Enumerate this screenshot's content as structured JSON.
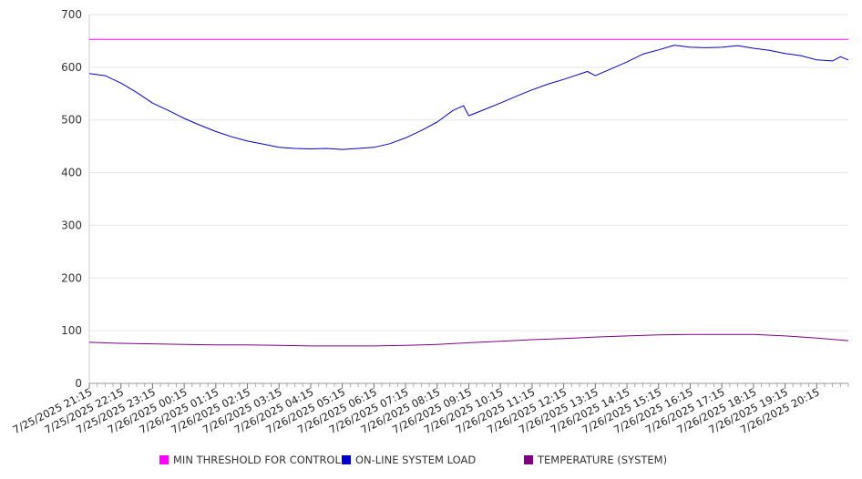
{
  "chart_data": {
    "type": "line",
    "ylim": [
      0,
      700
    ],
    "y_ticks": [
      "0",
      "100",
      "200",
      "300",
      "400",
      "500",
      "600",
      "700"
    ],
    "x_tick_labels": [
      "7/25/2025 21:15",
      "7/25/2025 22:15",
      "7/25/2025 23:15",
      "7/26/2025 00:15",
      "7/26/2025 01:15",
      "7/26/2025 02:15",
      "7/26/2025 03:15",
      "7/26/2025 04:15",
      "7/26/2025 05:15",
      "7/26/2025 06:15",
      "7/26/2025 07:15",
      "7/26/2025 08:15",
      "7/26/2025 09:15",
      "7/26/2025 10:15",
      "7/26/2025 11:15",
      "7/26/2025 12:15",
      "7/26/2025 13:15",
      "7/26/2025 14:15",
      "7/26/2025 15:15",
      "7/26/2025 16:15",
      "7/26/2025 17:15",
      "7/26/2025 18:15",
      "7/26/2025 19:15",
      "7/26/2025 20:15"
    ],
    "x_end": "7/26/2025 21:15",
    "grid": true,
    "legend_position": "bottom",
    "series": [
      {
        "name": "MIN THRESHOLD FOR CONTROL",
        "color": "#ff00ff",
        "points": [
          [
            "7/25/2025 21:15",
            653
          ],
          [
            "7/26/2025 21:15",
            653
          ]
        ]
      },
      {
        "name": "ON-LINE SYSTEM LOAD",
        "color": "#0000cc",
        "points": [
          [
            "7/25/2025 21:15",
            588
          ],
          [
            "7/25/2025 21:45",
            584
          ],
          [
            "7/25/2025 22:15",
            570
          ],
          [
            "7/25/2025 22:45",
            552
          ],
          [
            "7/25/2025 23:15",
            532
          ],
          [
            "7/25/2025 23:45",
            518
          ],
          [
            "7/26/2025 00:15",
            503
          ],
          [
            "7/26/2025 00:45",
            490
          ],
          [
            "7/26/2025 01:15",
            478
          ],
          [
            "7/26/2025 01:45",
            468
          ],
          [
            "7/26/2025 02:15",
            460
          ],
          [
            "7/26/2025 02:45",
            454
          ],
          [
            "7/26/2025 03:15",
            448
          ],
          [
            "7/26/2025 03:45",
            446
          ],
          [
            "7/26/2025 04:15",
            445
          ],
          [
            "7/26/2025 04:45",
            446
          ],
          [
            "7/26/2025 05:15",
            444
          ],
          [
            "7/26/2025 05:45",
            446
          ],
          [
            "7/26/2025 06:15",
            448
          ],
          [
            "7/26/2025 06:45",
            455
          ],
          [
            "7/26/2025 07:15",
            466
          ],
          [
            "7/26/2025 07:45",
            480
          ],
          [
            "7/26/2025 08:15",
            496
          ],
          [
            "7/26/2025 08:45",
            518
          ],
          [
            "7/26/2025 09:05",
            527
          ],
          [
            "7/26/2025 09:15",
            508
          ],
          [
            "7/26/2025 09:45",
            520
          ],
          [
            "7/26/2025 10:15",
            532
          ],
          [
            "7/26/2025 10:45",
            545
          ],
          [
            "7/26/2025 11:15",
            557
          ],
          [
            "7/26/2025 11:45",
            568
          ],
          [
            "7/26/2025 12:15",
            577
          ],
          [
            "7/26/2025 12:45",
            587
          ],
          [
            "7/26/2025 13:00",
            592
          ],
          [
            "7/26/2025 13:15",
            584
          ],
          [
            "7/26/2025 13:45",
            597
          ],
          [
            "7/26/2025 14:15",
            610
          ],
          [
            "7/26/2025 14:45",
            625
          ],
          [
            "7/26/2025 15:15",
            633
          ],
          [
            "7/26/2025 15:45",
            642
          ],
          [
            "7/26/2025 16:15",
            638
          ],
          [
            "7/26/2025 16:45",
            637
          ],
          [
            "7/26/2025 17:15",
            638
          ],
          [
            "7/26/2025 17:45",
            641
          ],
          [
            "7/26/2025 18:15",
            636
          ],
          [
            "7/26/2025 18:45",
            632
          ],
          [
            "7/26/2025 19:15",
            626
          ],
          [
            "7/26/2025 19:45",
            622
          ],
          [
            "7/26/2025 20:15",
            614
          ],
          [
            "7/26/2025 20:45",
            612
          ],
          [
            "7/26/2025 21:00",
            620
          ],
          [
            "7/26/2025 21:15",
            614
          ]
        ]
      },
      {
        "name": "TEMPERATURE (SYSTEM)",
        "color": "#800080",
        "points": [
          [
            "7/25/2025 21:15",
            78
          ],
          [
            "7/25/2025 22:15",
            76
          ],
          [
            "7/25/2025 23:15",
            75
          ],
          [
            "7/26/2025 00:15",
            74
          ],
          [
            "7/26/2025 01:15",
            73
          ],
          [
            "7/26/2025 02:15",
            73
          ],
          [
            "7/26/2025 03:15",
            72
          ],
          [
            "7/26/2025 04:15",
            71
          ],
          [
            "7/26/2025 05:15",
            71
          ],
          [
            "7/26/2025 06:15",
            71
          ],
          [
            "7/26/2025 07:15",
            72
          ],
          [
            "7/26/2025 08:15",
            74
          ],
          [
            "7/26/2025 09:15",
            77
          ],
          [
            "7/26/2025 10:15",
            80
          ],
          [
            "7/26/2025 11:15",
            83
          ],
          [
            "7/26/2025 12:15",
            85
          ],
          [
            "7/26/2025 13:15",
            88
          ],
          [
            "7/26/2025 14:15",
            90
          ],
          [
            "7/26/2025 15:15",
            92
          ],
          [
            "7/26/2025 16:15",
            93
          ],
          [
            "7/26/2025 17:15",
            93
          ],
          [
            "7/26/2025 18:15",
            93
          ],
          [
            "7/26/2025 19:15",
            90
          ],
          [
            "7/26/2025 20:15",
            86
          ],
          [
            "7/26/2025 21:15",
            81
          ]
        ]
      }
    ]
  }
}
